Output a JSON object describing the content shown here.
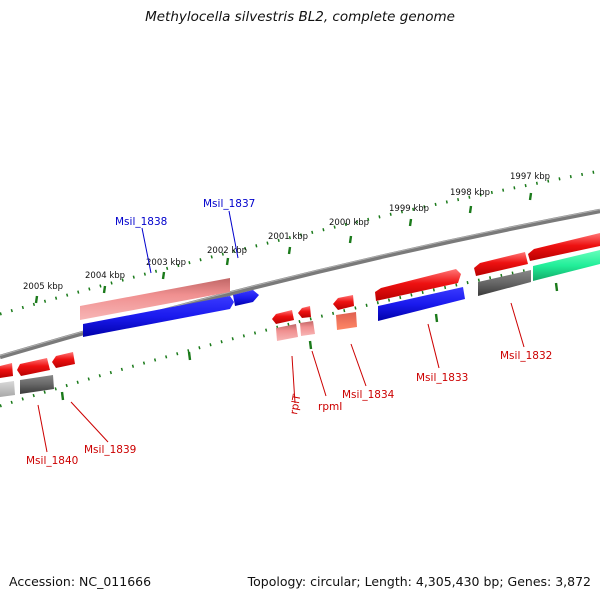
{
  "title": "Methylocella silvestris BL2, complete genome",
  "footer": {
    "accession_label": "Accession: NC_011666",
    "summary_label": "Topology: circular; Length: 4,305,430 bp; Genes: 3,872"
  },
  "ruler": {
    "unit_labels": [
      "2005 kbp",
      "2004 kbp",
      "2003 kbp",
      "2002 kbp",
      "2001 kbp",
      "2000 kbp",
      "1999 kbp",
      "1998 kbp",
      "1997 kbp"
    ]
  },
  "colors": {
    "forward_gene": "#ee1111",
    "forward_gene_light": "#f08080",
    "reverse_gene": "#1a1aee",
    "other_gene": "#666666",
    "rna_gene": "#22ee99",
    "backbone": "#808080",
    "tick": "#1a7a1a",
    "label_red": "#cc0000",
    "label_blue": "#0000cc"
  },
  "gene_labels": {
    "msil_1838": "Msil_1838",
    "msil_1837": "Msil_1837",
    "msil_1840": "Msil_1840",
    "msil_1839": "Msil_1839",
    "rplT": "rplT",
    "rpmI": "rpmI",
    "msil_1834": "Msil_1834",
    "msil_1833": "Msil_1833",
    "msil_1832": "Msil_1832"
  }
}
